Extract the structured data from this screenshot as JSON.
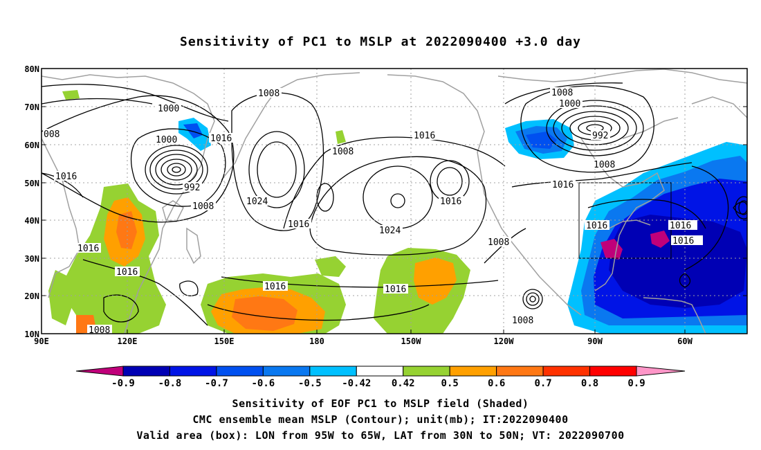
{
  "title": "Sensitivity of PC1 to MSLP at 2022090400 +3.0 day",
  "lat_labels": [
    "80N",
    "70N",
    "60N",
    "50N",
    "40N",
    "30N",
    "20N",
    "10N"
  ],
  "lon_labels": [
    "90E",
    "120E",
    "150E",
    "180",
    "150W",
    "120W",
    "90W",
    "60W"
  ],
  "contour_labels": [
    {
      "text": "1008"
    },
    {
      "text": "1000"
    },
    {
      "text": "008"
    },
    {
      "text": "1000"
    },
    {
      "text": "1016"
    },
    {
      "text": "992"
    },
    {
      "text": "1008"
    },
    {
      "text": "1016"
    },
    {
      "text": "1024"
    },
    {
      "text": "1016"
    },
    {
      "text": "1008"
    },
    {
      "text": "1016"
    },
    {
      "text": "1024"
    },
    {
      "text": "1016"
    },
    {
      "text": "1008"
    },
    {
      "text": "1008"
    },
    {
      "text": "1000"
    },
    {
      "text": "992"
    },
    {
      "text": "1008"
    },
    {
      "text": "1016"
    },
    {
      "text": "1016"
    },
    {
      "text": "1016"
    },
    {
      "text": "1016"
    },
    {
      "text": "1016"
    },
    {
      "text": "1016"
    },
    {
      "text": "1008"
    },
    {
      "text": "1008"
    }
  ],
  "colorbar": {
    "labels": [
      "-0.9",
      "-0.8",
      "-0.7",
      "-0.6",
      "-0.5",
      "-0.42",
      "0.42",
      "0.5",
      "0.6",
      "0.7",
      "0.8",
      "0.9"
    ],
    "colors": [
      "#c0007a",
      "#0000b4",
      "#0014e6",
      "#0050f0",
      "#0a78f0",
      "#00c0ff",
      "#ffffff",
      "#96d232",
      "#ffa000",
      "#ff7814",
      "#ff3200",
      "#ff0000",
      "#ff96c8"
    ]
  },
  "caption_line1": "Sensitivity of EOF PC1 to MSLP field (Shaded)",
  "caption_line2": "CMC ensemble mean MSLP (Contour); unit(mb); IT:2022090400",
  "caption_line3": "Valid area (box): LON from 95W to 65W, LAT from 30N to 50N; VT: 2022090700"
}
